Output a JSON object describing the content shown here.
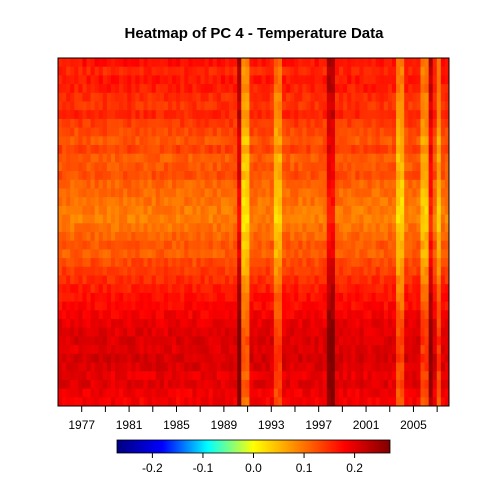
{
  "chart_data": {
    "type": "heatmap",
    "title": "Heatmap of PC 4  - Temperature Data",
    "xlabel": "",
    "ylabel": "",
    "x_range": [
      1975,
      2008
    ],
    "x_ticks": [
      {
        "value": 1977,
        "label": "1977"
      },
      {
        "value": 1981,
        "label": "1981"
      },
      {
        "value": 1985,
        "label": "1985"
      },
      {
        "value": 1989,
        "label": "1989"
      },
      {
        "value": 1993,
        "label": "1993"
      },
      {
        "value": 1997,
        "label": "1997"
      },
      {
        "value": 2001,
        "label": "2001"
      },
      {
        "value": 2005,
        "label": "2005"
      }
    ],
    "colorbar": {
      "range": [
        -0.27,
        0.27
      ],
      "ticks": [
        {
          "value": -0.2,
          "label": "-0.2"
        },
        {
          "value": -0.1,
          "label": "-0.1"
        },
        {
          "value": 0.0,
          "label": "0.0"
        },
        {
          "value": 0.1,
          "label": "0.1"
        },
        {
          "value": 0.2,
          "label": "0.2"
        }
      ],
      "colormap": [
        "#000080",
        "#0000ff",
        "#00ffff",
        "#ffff00",
        "#ff8000",
        "#ff0000",
        "#800000"
      ]
    },
    "grid": false,
    "legend": "colorbar-bottom",
    "row_band_values": [
      0.17,
      0.155,
      0.165,
      0.16,
      0.15,
      0.145,
      0.155,
      0.14,
      0.13,
      0.12,
      0.135,
      0.115,
      0.12,
      0.125,
      0.11,
      0.105,
      0.1,
      0.095,
      0.09,
      0.1,
      0.11,
      0.12,
      0.115,
      0.13,
      0.14,
      0.15,
      0.16,
      0.17,
      0.175,
      0.185,
      0.195,
      0.2,
      0.205,
      0.2,
      0.21,
      0.205,
      0.195,
      0.2,
      0.19,
      0.185
    ],
    "column_anomalies": [
      {
        "year": 1990.3,
        "delta": 0.08,
        "note": "hot column"
      },
      {
        "year": 1990.7,
        "delta": -0.08,
        "note": "cool column"
      },
      {
        "year": 1993.5,
        "delta": -0.06,
        "note": "cool line"
      },
      {
        "year": 1998.0,
        "delta": 0.07,
        "note": "hot column"
      },
      {
        "year": 2003.8,
        "delta": -0.07,
        "note": "cool column"
      },
      {
        "year": 2006.0,
        "delta": -0.06,
        "note": "cool column"
      },
      {
        "year": 2006.5,
        "delta": 0.06,
        "note": "hot column"
      },
      {
        "year": 2007.0,
        "delta": -0.06,
        "note": "cool column"
      }
    ]
  }
}
